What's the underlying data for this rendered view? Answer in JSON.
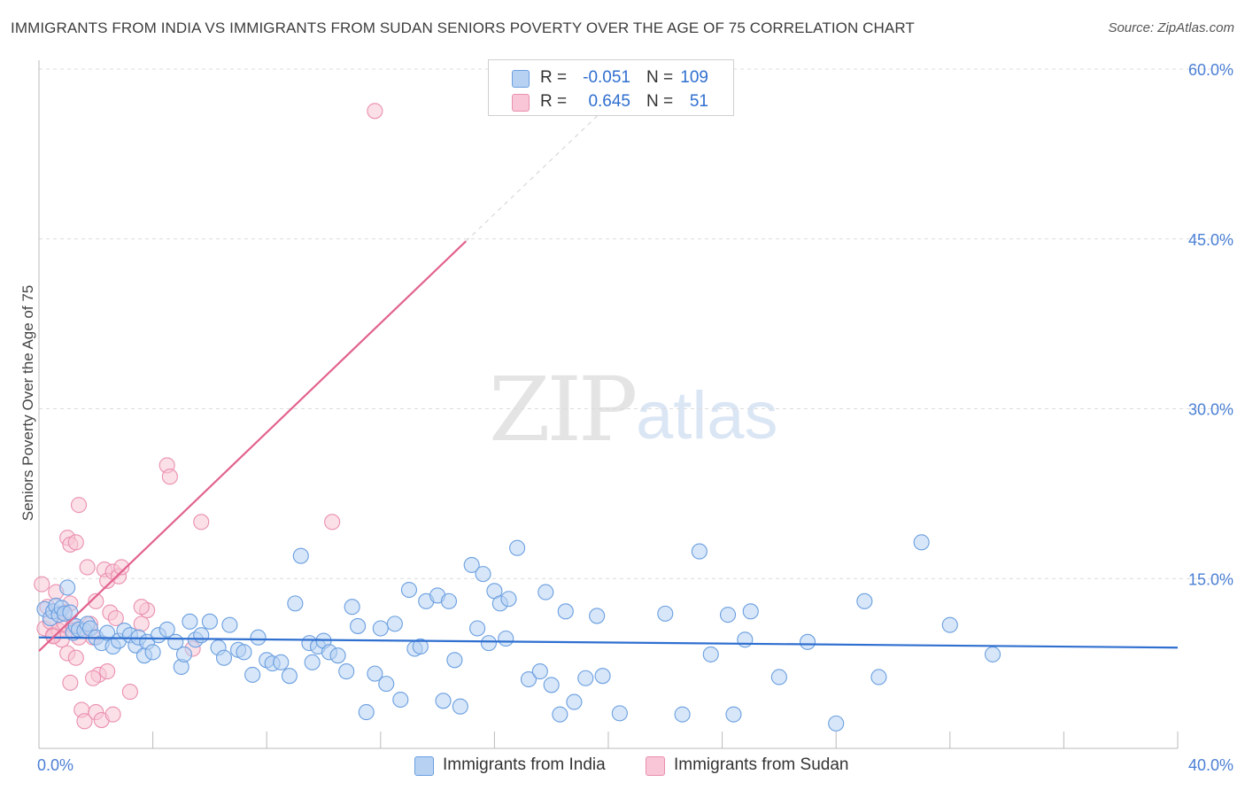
{
  "title": "IMMIGRANTS FROM INDIA VS IMMIGRANTS FROM SUDAN SENIORS POVERTY OVER THE AGE OF 75 CORRELATION CHART",
  "source": "Source: ZipAtlas.com",
  "watermark": {
    "zip": "ZIP",
    "atlas": "atlas"
  },
  "legend": {
    "india": {
      "r_label": "R =",
      "r_value": "-0.051",
      "n_label": "N =",
      "n_value": "109",
      "color": "#a9c8f2"
    },
    "sudan": {
      "r_label": "R =",
      "r_value": "0.645",
      "n_label": "N =",
      "n_value": "51",
      "color": "#f6b8cc"
    }
  },
  "bottom_legend": {
    "india": "Immigrants from India",
    "sudan": "Immigrants from Sudan"
  },
  "chart_data": {
    "type": "scatter",
    "title": "IMMIGRANTS FROM INDIA VS IMMIGRANTS FROM SUDAN SENIORS POVERTY OVER THE AGE OF 75 CORRELATION CHART",
    "xlabel": "",
    "ylabel": "Seniors Poverty Over the Age of 75",
    "xlim": [
      0,
      40
    ],
    "ylim": [
      0,
      60
    ],
    "x_ticks": [
      "0.0%",
      "40.0%"
    ],
    "y_ticks": [
      {
        "v": 15,
        "label": "15.0%"
      },
      {
        "v": 30,
        "label": "30.0%"
      },
      {
        "v": 45,
        "label": "45.0%"
      },
      {
        "v": 60,
        "label": "60.0%"
      }
    ],
    "grid": true,
    "series": [
      {
        "name": "Immigrants from India",
        "color": "#6a9fe0",
        "fill": "#b7d1f3",
        "trend": {
          "x0": 0,
          "y0": 9.8,
          "x1": 40,
          "y1": 8.9,
          "color": "#2f6fd0"
        },
        "points": [
          [
            0.2,
            12.3
          ],
          [
            0.4,
            11.5
          ],
          [
            0.5,
            12.1
          ],
          [
            0.6,
            12.6
          ],
          [
            0.7,
            11.8
          ],
          [
            0.8,
            12.4
          ],
          [
            0.9,
            11.9
          ],
          [
            1.0,
            14.2
          ],
          [
            1.1,
            12.0
          ],
          [
            1.2,
            10.2
          ],
          [
            1.3,
            10.8
          ],
          [
            1.4,
            10.5
          ],
          [
            1.6,
            10.4
          ],
          [
            1.7,
            11.0
          ],
          [
            1.8,
            10.6
          ],
          [
            2.0,
            9.8
          ],
          [
            2.2,
            9.3
          ],
          [
            2.4,
            10.2
          ],
          [
            2.6,
            9.0
          ],
          [
            2.8,
            9.5
          ],
          [
            3.0,
            10.4
          ],
          [
            3.2,
            10.0
          ],
          [
            3.4,
            9.1
          ],
          [
            3.5,
            9.8
          ],
          [
            3.7,
            8.2
          ],
          [
            3.8,
            9.4
          ],
          [
            4.0,
            8.5
          ],
          [
            4.2,
            10.0
          ],
          [
            4.5,
            10.5
          ],
          [
            4.8,
            9.4
          ],
          [
            5.0,
            7.2
          ],
          [
            5.1,
            8.3
          ],
          [
            5.3,
            11.2
          ],
          [
            5.5,
            9.6
          ],
          [
            5.7,
            10.0
          ],
          [
            6.0,
            11.2
          ],
          [
            6.3,
            8.9
          ],
          [
            6.5,
            8.0
          ],
          [
            6.7,
            10.9
          ],
          [
            7.0,
            8.7
          ],
          [
            7.2,
            8.5
          ],
          [
            7.5,
            6.5
          ],
          [
            7.7,
            9.8
          ],
          [
            8.0,
            7.8
          ],
          [
            8.2,
            7.5
          ],
          [
            8.5,
            7.6
          ],
          [
            8.8,
            6.4
          ],
          [
            9.0,
            12.8
          ],
          [
            9.2,
            17.0
          ],
          [
            9.5,
            9.3
          ],
          [
            9.6,
            7.6
          ],
          [
            9.8,
            9.0
          ],
          [
            10.0,
            9.5
          ],
          [
            10.2,
            8.5
          ],
          [
            10.5,
            8.2
          ],
          [
            10.8,
            6.8
          ],
          [
            11.0,
            12.5
          ],
          [
            11.2,
            10.8
          ],
          [
            11.5,
            3.2
          ],
          [
            11.8,
            6.6
          ],
          [
            12.0,
            10.6
          ],
          [
            12.2,
            5.7
          ],
          [
            12.5,
            11.0
          ],
          [
            12.7,
            4.3
          ],
          [
            13.0,
            14.0
          ],
          [
            13.2,
            8.8
          ],
          [
            13.4,
            9.0
          ],
          [
            13.6,
            13.0
          ],
          [
            14.0,
            13.5
          ],
          [
            14.2,
            4.2
          ],
          [
            14.4,
            13.0
          ],
          [
            14.6,
            7.8
          ],
          [
            14.8,
            3.7
          ],
          [
            15.2,
            16.2
          ],
          [
            15.4,
            10.6
          ],
          [
            15.6,
            15.4
          ],
          [
            15.8,
            9.3
          ],
          [
            16.0,
            13.9
          ],
          [
            16.2,
            12.8
          ],
          [
            16.4,
            9.7
          ],
          [
            16.5,
            13.2
          ],
          [
            16.8,
            17.7
          ],
          [
            17.2,
            6.1
          ],
          [
            17.6,
            6.8
          ],
          [
            17.8,
            13.8
          ],
          [
            18.0,
            5.6
          ],
          [
            18.3,
            3.0
          ],
          [
            18.5,
            12.1
          ],
          [
            18.8,
            4.1
          ],
          [
            19.2,
            6.2
          ],
          [
            19.6,
            11.7
          ],
          [
            19.8,
            6.4
          ],
          [
            20.4,
            3.1
          ],
          [
            22.0,
            11.9
          ],
          [
            22.6,
            3.0
          ],
          [
            23.2,
            17.4
          ],
          [
            23.6,
            8.3
          ],
          [
            24.2,
            11.8
          ],
          [
            24.4,
            3.0
          ],
          [
            24.8,
            9.6
          ],
          [
            25.0,
            12.1
          ],
          [
            26.0,
            6.3
          ],
          [
            27.0,
            9.4
          ],
          [
            28.0,
            2.2
          ],
          [
            29.0,
            13.0
          ],
          [
            29.5,
            6.3
          ],
          [
            31.0,
            18.2
          ],
          [
            32.0,
            10.9
          ],
          [
            33.5,
            8.3
          ]
        ]
      },
      {
        "name": "Immigrants from Sudan",
        "color": "#ea8fae",
        "fill": "#f8c6d6",
        "trend": {
          "x0": 0,
          "y0": 8.6,
          "x1": 15,
          "y1": 44.8,
          "dash_to_x": 20,
          "dash_to_y": 56.8,
          "color": "#e2628e"
        },
        "points": [
          [
            0.1,
            14.5
          ],
          [
            0.2,
            10.6
          ],
          [
            0.3,
            12.5
          ],
          [
            0.4,
            11.2
          ],
          [
            0.5,
            10.0
          ],
          [
            0.6,
            13.8
          ],
          [
            0.7,
            10.4
          ],
          [
            0.8,
            9.6
          ],
          [
            0.9,
            11.0
          ],
          [
            1.0,
            8.4
          ],
          [
            1.1,
            12.8
          ],
          [
            1.2,
            10.8
          ],
          [
            1.0,
            18.6
          ],
          [
            1.1,
            18.0
          ],
          [
            1.2,
            10.4
          ],
          [
            1.3,
            18.2
          ],
          [
            1.4,
            21.5
          ],
          [
            1.5,
            3.4
          ],
          [
            1.6,
            2.4
          ],
          [
            1.7,
            16.0
          ],
          [
            1.8,
            11.0
          ],
          [
            1.9,
            9.8
          ],
          [
            2.0,
            3.2
          ],
          [
            2.0,
            13.0
          ],
          [
            2.1,
            6.5
          ],
          [
            2.2,
            2.5
          ],
          [
            2.3,
            15.8
          ],
          [
            2.4,
            14.8
          ],
          [
            2.5,
            12.0
          ],
          [
            2.6,
            15.6
          ],
          [
            2.6,
            3.0
          ],
          [
            2.7,
            11.5
          ],
          [
            2.8,
            15.2
          ],
          [
            2.9,
            16.0
          ],
          [
            3.2,
            5.0
          ],
          [
            3.6,
            11.0
          ],
          [
            3.8,
            12.2
          ],
          [
            3.6,
            12.5
          ],
          [
            1.3,
            8.0
          ],
          [
            1.1,
            5.8
          ],
          [
            1.9,
            6.2
          ],
          [
            2.4,
            6.8
          ],
          [
            4.5,
            25.0
          ],
          [
            4.6,
            24.0
          ],
          [
            5.4,
            8.8
          ],
          [
            5.7,
            20.0
          ],
          [
            10.3,
            20.0
          ],
          [
            11.8,
            56.3
          ],
          [
            0.9,
            12.0
          ],
          [
            1.4,
            9.8
          ],
          [
            0.5,
            9.9
          ]
        ]
      }
    ]
  }
}
